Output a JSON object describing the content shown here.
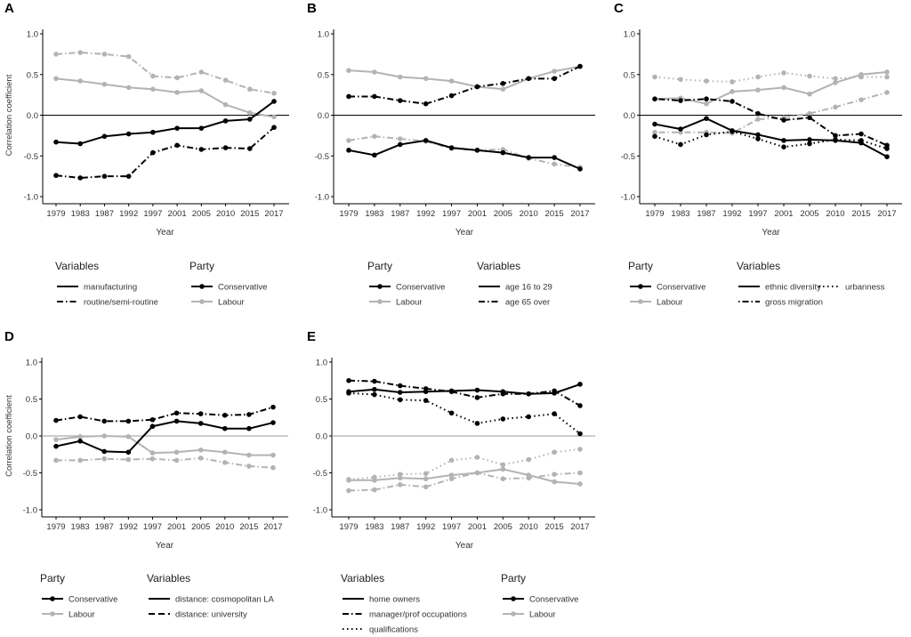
{
  "colors": {
    "Conservative": "#000000",
    "Labour": "#b3b3b3"
  },
  "chart_data": [
    {
      "panel": "A",
      "type": "line",
      "x": [
        "1979",
        "1983",
        "1987",
        "1992",
        "1997",
        "2001",
        "2005",
        "2010",
        "2015",
        "2017"
      ],
      "xlabel": "Year",
      "ylabel": "Correlation coefficient",
      "ylim": [
        -1.0,
        1.0
      ],
      "yticks": [
        "1.0",
        "0.5",
        "0.0",
        "-0.5",
        "-1.0"
      ],
      "legend": [
        {
          "title": "Variables",
          "items": [
            {
              "label": "manufacturing",
              "style": "solid"
            },
            {
              "label": "routine/semi-routine",
              "style": "dashdot"
            }
          ]
        },
        {
          "title": "Party",
          "items": [
            {
              "label": "Conservative",
              "party": "Conservative"
            },
            {
              "label": "Labour",
              "party": "Labour"
            }
          ]
        }
      ],
      "series": [
        {
          "party": "Conservative",
          "variable": "manufacturing",
          "style": "solid",
          "values": [
            -0.33,
            -0.35,
            -0.26,
            -0.23,
            -0.21,
            -0.16,
            -0.16,
            -0.07,
            -0.05,
            0.17
          ]
        },
        {
          "party": "Labour",
          "variable": "manufacturing",
          "style": "solid",
          "values": [
            0.45,
            0.42,
            0.38,
            0.34,
            0.32,
            0.28,
            0.3,
            0.13,
            0.03,
            -0.02
          ]
        },
        {
          "party": "Conservative",
          "variable": "routine/semi-routine",
          "style": "dashdot",
          "values": [
            -0.74,
            -0.77,
            -0.75,
            -0.75,
            -0.46,
            -0.37,
            -0.42,
            -0.4,
            -0.41,
            -0.15
          ]
        },
        {
          "party": "Labour",
          "variable": "routine/semi-routine",
          "style": "dashdot",
          "values": [
            0.75,
            0.77,
            0.75,
            0.72,
            0.48,
            0.46,
            0.53,
            0.43,
            0.32,
            0.27
          ]
        }
      ]
    },
    {
      "panel": "B",
      "type": "line",
      "x": [
        "1979",
        "1983",
        "1987",
        "1992",
        "1997",
        "2001",
        "2005",
        "2010",
        "2015",
        "2017"
      ],
      "xlabel": "Year",
      "ylabel": "",
      "ylim": [
        -1.0,
        1.0
      ],
      "yticks": [
        "1.0",
        "0.5",
        "0.0",
        "-0.5",
        "-1.0"
      ],
      "legend": [
        {
          "title": "Party",
          "items": [
            {
              "label": "Conservative",
              "party": "Conservative"
            },
            {
              "label": "Labour",
              "party": "Labour"
            }
          ]
        },
        {
          "title": "Variables",
          "items": [
            {
              "label": "age 16 to 29",
              "style": "solid"
            },
            {
              "label": "age 65 over",
              "style": "dashdot"
            }
          ]
        }
      ],
      "series": [
        {
          "party": "Labour",
          "variable": "age 16 to 29",
          "style": "solid",
          "values": [
            0.55,
            0.53,
            0.47,
            0.45,
            0.42,
            0.35,
            0.32,
            0.45,
            0.54,
            0.6
          ]
        },
        {
          "party": "Conservative",
          "variable": "age 16 to 29",
          "style": "solid",
          "values": [
            -0.43,
            -0.49,
            -0.36,
            -0.31,
            -0.4,
            -0.43,
            -0.46,
            -0.52,
            -0.52,
            -0.66
          ]
        },
        {
          "party": "Conservative",
          "variable": "age 65 over",
          "style": "dashdot",
          "values": [
            0.23,
            0.23,
            0.18,
            0.14,
            0.24,
            0.35,
            0.39,
            0.45,
            0.45,
            0.6
          ]
        },
        {
          "party": "Labour",
          "variable": "age 65 over",
          "style": "dashdot",
          "values": [
            -0.31,
            -0.26,
            -0.29,
            -0.32,
            -0.41,
            -0.43,
            -0.42,
            -0.53,
            -0.6,
            -0.64
          ]
        }
      ]
    },
    {
      "panel": "C",
      "type": "line",
      "x": [
        "1979",
        "1983",
        "1987",
        "1992",
        "1997",
        "2001",
        "2005",
        "2010",
        "2015",
        "2017"
      ],
      "xlabel": "Year",
      "ylabel": "",
      "ylim": [
        -1.0,
        1.0
      ],
      "yticks": [
        "1.0",
        "0.5",
        "0.0",
        "-0.5",
        "-1.0"
      ],
      "legend": [
        {
          "title": "Party",
          "items": [
            {
              "label": "Conservative",
              "party": "Conservative"
            },
            {
              "label": "Labour",
              "party": "Labour"
            }
          ]
        },
        {
          "title": "Variables",
          "items": [
            {
              "label": "ethnic diversity",
              "style": "solid"
            },
            {
              "label": "gross migration",
              "style": "dotdash"
            },
            {
              "label": "urbanness",
              "style": "dotted"
            }
          ]
        }
      ],
      "series": [
        {
          "party": "Labour",
          "variable": "urbanness",
          "style": "dotted",
          "values": [
            0.47,
            0.44,
            0.42,
            0.41,
            0.47,
            0.52,
            0.48,
            0.45,
            0.47,
            0.47
          ]
        },
        {
          "party": "Labour",
          "variable": "ethnic diversity",
          "style": "solid",
          "values": [
            0.2,
            0.21,
            0.14,
            0.29,
            0.31,
            0.34,
            0.26,
            0.4,
            0.5,
            0.53
          ]
        },
        {
          "party": "Labour",
          "variable": "gross migration",
          "style": "dotdash",
          "values": [
            -0.21,
            -0.21,
            -0.21,
            -0.22,
            -0.05,
            -0.03,
            0.02,
            0.1,
            0.19,
            0.28
          ]
        },
        {
          "party": "Conservative",
          "variable": "gross migration",
          "style": "dotdash",
          "values": [
            0.2,
            0.18,
            0.2,
            0.17,
            0.02,
            -0.06,
            -0.03,
            -0.25,
            -0.23,
            -0.37
          ]
        },
        {
          "party": "Conservative",
          "variable": "ethnic diversity",
          "style": "solid",
          "values": [
            -0.11,
            -0.17,
            -0.04,
            -0.19,
            -0.24,
            -0.31,
            -0.3,
            -0.31,
            -0.34,
            -0.51
          ]
        },
        {
          "party": "Conservative",
          "variable": "urbanness",
          "style": "dotted",
          "values": [
            -0.26,
            -0.36,
            -0.24,
            -0.2,
            -0.29,
            -0.39,
            -0.35,
            -0.3,
            -0.31,
            -0.41
          ]
        }
      ]
    },
    {
      "panel": "D",
      "type": "line",
      "x": [
        "1979",
        "1983",
        "1987",
        "1992",
        "1997",
        "2001",
        "2005",
        "2010",
        "2015",
        "2017"
      ],
      "xlabel": "Year",
      "ylabel": "Correlation coefficient",
      "ylim": [
        -1.0,
        1.0
      ],
      "yticks": [
        "1.0",
        "0.5",
        "0.0",
        "-0.5",
        "-1.0"
      ],
      "legend": [
        {
          "title": "Party",
          "items": [
            {
              "label": "Conservative",
              "party": "Conservative"
            },
            {
              "label": "Labour",
              "party": "Labour"
            }
          ]
        },
        {
          "title": "Variables",
          "items": [
            {
              "label": "distance: cosmopolitan LA",
              "style": "solid"
            },
            {
              "label": "distance: university",
              "style": "dashed"
            }
          ]
        }
      ],
      "series": [
        {
          "party": "Conservative",
          "variable": "distance: university",
          "style": "dashdot",
          "values": [
            0.21,
            0.26,
            0.2,
            0.2,
            0.22,
            0.31,
            0.3,
            0.28,
            0.29,
            0.39
          ]
        },
        {
          "party": "Conservative",
          "variable": "distance: cosmopolitan LA",
          "style": "solid",
          "values": [
            -0.14,
            -0.07,
            -0.21,
            -0.22,
            0.13,
            0.2,
            0.17,
            0.1,
            0.1,
            0.18
          ]
        },
        {
          "party": "Labour",
          "variable": "distance: cosmopolitan LA",
          "style": "solid",
          "values": [
            -0.05,
            -0.01,
            0.0,
            -0.01,
            -0.23,
            -0.22,
            -0.19,
            -0.22,
            -0.26,
            -0.26
          ]
        },
        {
          "party": "Labour",
          "variable": "distance: university",
          "style": "dashdot",
          "values": [
            -0.33,
            -0.33,
            -0.31,
            -0.32,
            -0.31,
            -0.33,
            -0.3,
            -0.36,
            -0.41,
            -0.43
          ]
        }
      ]
    },
    {
      "panel": "E",
      "type": "line",
      "x": [
        "1979",
        "1983",
        "1987",
        "1992",
        "1997",
        "2001",
        "2005",
        "2010",
        "2015",
        "2017"
      ],
      "xlabel": "Year",
      "ylabel": "",
      "ylim": [
        -1.0,
        1.0
      ],
      "yticks": [
        "1.0",
        "0.5",
        "0.0",
        "-0.5",
        "-1.0"
      ],
      "legend": [
        {
          "title": "Variables",
          "items": [
            {
              "label": "home owners",
              "style": "solid"
            },
            {
              "label": "manager/prof occupations",
              "style": "dashdot"
            },
            {
              "label": "qualifications",
              "style": "dotted"
            }
          ]
        },
        {
          "title": "Party",
          "items": [
            {
              "label": "Conservative",
              "party": "Conservative"
            },
            {
              "label": "Labour",
              "party": "Labour"
            }
          ]
        }
      ],
      "series": [
        {
          "party": "Conservative",
          "variable": "home owners",
          "style": "solid",
          "values": [
            0.6,
            0.63,
            0.59,
            0.6,
            0.61,
            0.62,
            0.6,
            0.57,
            0.58,
            0.7
          ]
        },
        {
          "party": "Conservative",
          "variable": "manager/prof occupations",
          "style": "dashdot",
          "values": [
            0.75,
            0.74,
            0.68,
            0.64,
            0.6,
            0.52,
            0.57,
            0.57,
            0.61,
            0.41
          ]
        },
        {
          "party": "Conservative",
          "variable": "qualifications",
          "style": "dotted",
          "values": [
            0.58,
            0.56,
            0.49,
            0.48,
            0.31,
            0.17,
            0.23,
            0.26,
            0.3,
            0.03
          ]
        },
        {
          "party": "Labour",
          "variable": "home owners",
          "style": "solid",
          "values": [
            -0.6,
            -0.6,
            -0.57,
            -0.58,
            -0.53,
            -0.5,
            -0.45,
            -0.53,
            -0.62,
            -0.65
          ]
        },
        {
          "party": "Labour",
          "variable": "manager/prof occupations",
          "style": "dashdot",
          "values": [
            -0.74,
            -0.73,
            -0.66,
            -0.69,
            -0.58,
            -0.5,
            -0.58,
            -0.57,
            -0.52,
            -0.5
          ]
        },
        {
          "party": "Labour",
          "variable": "qualifications",
          "style": "dotted",
          "values": [
            -0.59,
            -0.56,
            -0.52,
            -0.51,
            -0.33,
            -0.29,
            -0.39,
            -0.32,
            -0.22,
            -0.18
          ]
        }
      ]
    }
  ]
}
